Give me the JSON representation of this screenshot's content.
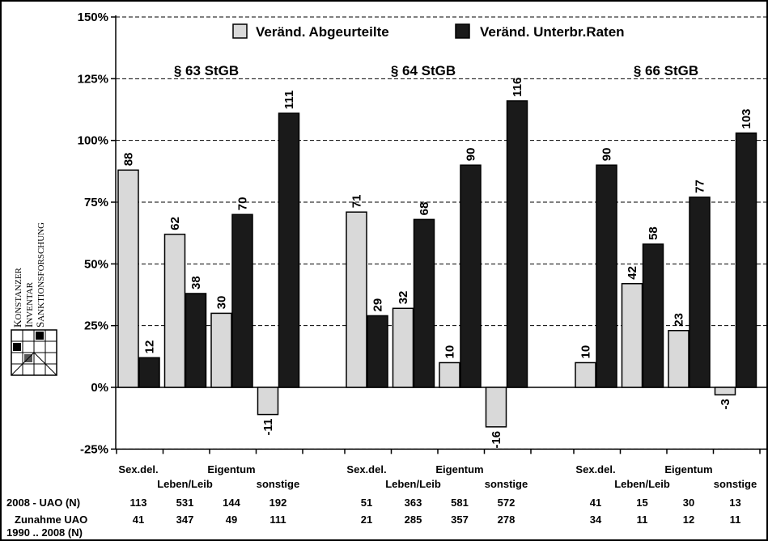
{
  "chart_data": {
    "type": "bar",
    "ylim": [
      -25,
      150
    ],
    "yticks": [
      -25,
      0,
      25,
      50,
      75,
      100,
      125,
      150
    ],
    "ytick_labels": [
      "-25%",
      "0%",
      "25%",
      "50%",
      "75%",
      "100%",
      "125%",
      "150%"
    ],
    "grid": "horizontal-dashed",
    "legend_position": "top",
    "series": [
      {
        "name": "Veränd. Abgeurteilte",
        "color": "#d9d9d9"
      },
      {
        "name": "Veränd. Unterbr.Raten",
        "color": "#1a1a1a"
      }
    ],
    "groups": [
      {
        "title": "§ 63 StGB",
        "categories": [
          "Sex.del.",
          "Leben/Leib",
          "Eigentum",
          "sonstige"
        ],
        "abgeurteilte": [
          88,
          62,
          30,
          -11
        ],
        "unterbr_raten": [
          12,
          38,
          70,
          111
        ],
        "uao_2008": [
          "113",
          "531",
          "144",
          "192"
        ],
        "zunahme_uao": [
          "41",
          "347",
          "49",
          "111"
        ]
      },
      {
        "title": "§ 64 StGB",
        "categories": [
          "Sex.del.",
          "Leben/Leib",
          "Eigentum",
          "sonstige"
        ],
        "abgeurteilte": [
          71,
          32,
          10,
          -16
        ],
        "unterbr_raten": [
          29,
          68,
          90,
          116
        ],
        "uao_2008": [
          "51",
          "363",
          "581",
          "572"
        ],
        "zunahme_uao": [
          "21",
          "285",
          "357",
          "278"
        ]
      },
      {
        "title": "§ 66 StGB",
        "categories": [
          "Sex.del.",
          "Leben/Leib",
          "Eigentum",
          "sonstige"
        ],
        "abgeurteilte": [
          10,
          42,
          23,
          -3
        ],
        "unterbr_raten": [
          90,
          58,
          77,
          103
        ],
        "uao_2008": [
          "41",
          "15",
          "30",
          "13"
        ],
        "zunahme_uao": [
          "34",
          "11",
          "12",
          "11"
        ]
      }
    ],
    "table_rows": {
      "row1_label": "2008 - UAO (N)",
      "row2_label_line1": "Zunahme UAO",
      "row2_label_line2": "1990 .. 2008 (N)"
    }
  },
  "logo": {
    "line1_initial": "K",
    "line1_rest": "ONSTANZER",
    "line2_initial": "I",
    "line2_rest": "NVENTAR",
    "line3_initial": "S",
    "line3_rest": "ANKTIONSFORSCHUNG"
  }
}
